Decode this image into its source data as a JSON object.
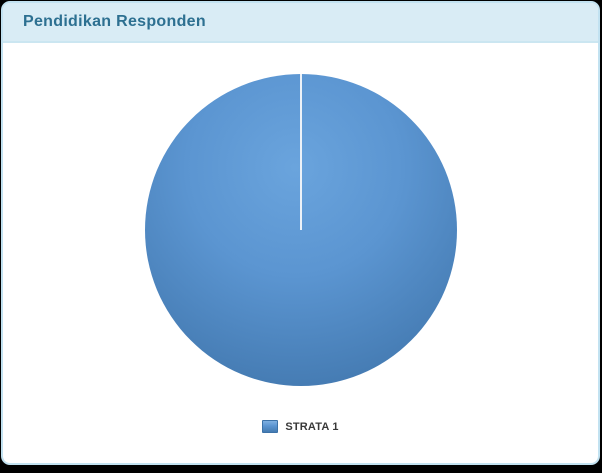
{
  "card": {
    "title": "Pendidikan Responden"
  },
  "chart_data": {
    "type": "pie",
    "title": "Pendidikan Responden",
    "slices": [
      {
        "label": "STRATA 1",
        "value": 100,
        "color": "#5b95d1"
      }
    ],
    "total_percent": 100,
    "start_angle_deg": 90,
    "legend_position": "bottom",
    "palette": {
      "slice_gradient_inner": "#6aa4dd",
      "slice_gradient_outer": "#3e73a9",
      "divider_line": "#edf2f8"
    }
  },
  "legend": {
    "items": [
      {
        "label": "STRATA 1",
        "swatch_color": "#5b95d1"
      }
    ]
  },
  "theme": {
    "page_bg": "#000000",
    "card_bg": "#ffffff",
    "card_border": "#c2e2f1",
    "header_bg": "#d9ecf5",
    "title_color": "#2d7091",
    "legend_text_color": "#383838"
  }
}
